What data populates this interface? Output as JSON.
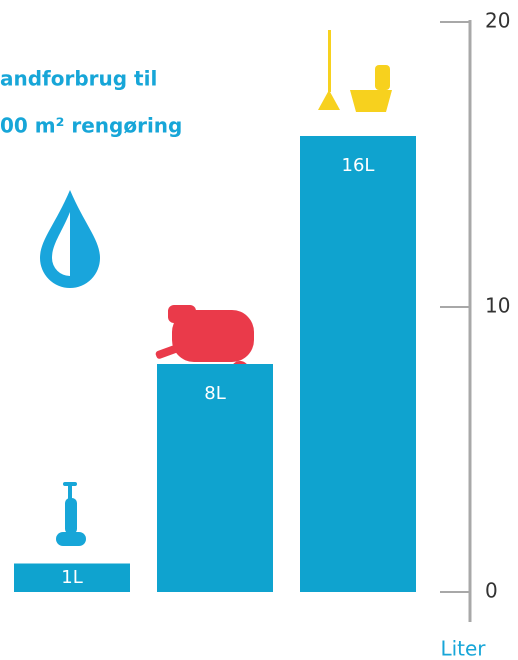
{
  "chart_data": {
    "type": "bar",
    "title": [
      "andforbrug til",
      "00 m² rengøring"
    ],
    "categories": [
      null,
      null,
      null
    ],
    "values": [
      1,
      8,
      16
    ],
    "value_labels": [
      "1L",
      "8L",
      "16L"
    ],
    "color": "#0fa3cf",
    "y_label": "Liter",
    "ylim": [
      0,
      20
    ],
    "yticks": [
      0,
      10,
      20
    ]
  }
}
